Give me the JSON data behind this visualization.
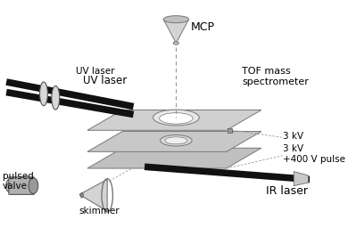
{
  "bg_color": "#ffffff",
  "labels": {
    "mcp": "MCP",
    "tof": "TOF mass\nspectrometer",
    "uv1": "UV laser",
    "uv2": "UV laser",
    "pulsed_valve": "pulsed\nvalve",
    "skimmer": "skimmer",
    "ir_laser": "IR laser",
    "3kv_top": "3 kV",
    "3kv_bottom": "3 kV\n+400 V pulse"
  },
  "beam_color": "#111111",
  "dashed_color": "#999999",
  "plate_color": "#cccccc",
  "plate_edge": "#777777",
  "gray_dark": "#888888",
  "gray_mid": "#bbbbbb",
  "gray_light": "#dddddd"
}
